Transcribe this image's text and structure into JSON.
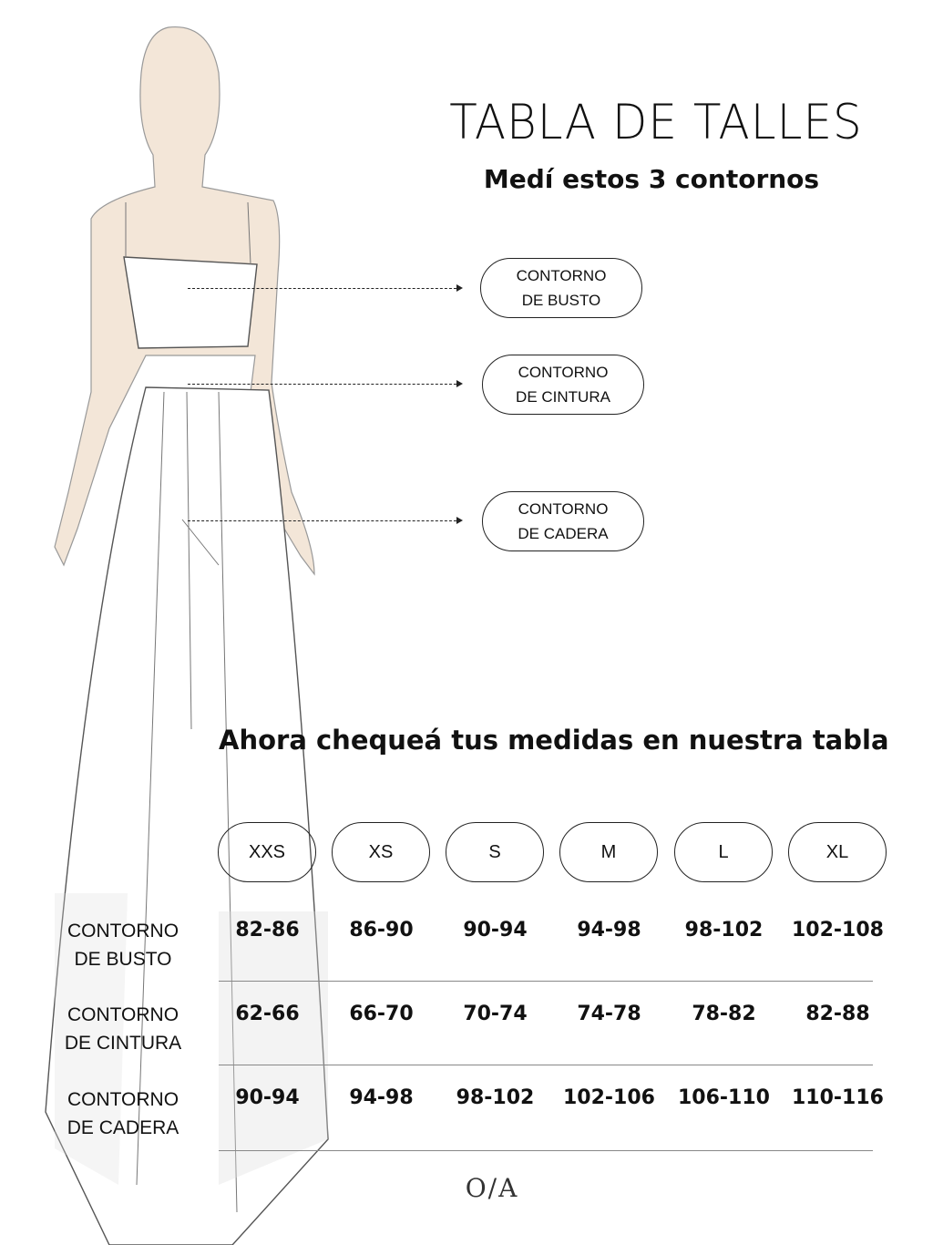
{
  "title": "TABLA DE TALLES",
  "subtitle": "Medí estos 3 contornos",
  "measure_labels": [
    {
      "line1": "CONTORNO",
      "line2": "DE BUSTO"
    },
    {
      "line1": "CONTORNO",
      "line2": "DE CINTURA"
    },
    {
      "line1": "CONTORNO",
      "line2": "DE CADERA"
    }
  ],
  "table_heading": "Ahora chequeá tus medidas en nuestra tabla",
  "table": {
    "sizes": [
      "XXS",
      "XS",
      "S",
      "M",
      "L",
      "XL"
    ],
    "rows": [
      {
        "line1": "CONTORNO",
        "line2": "DE BUSTO",
        "values": [
          "82-86",
          "86-90",
          "90-94",
          "94-98",
          "98-102",
          "102-108"
        ]
      },
      {
        "line1": "CONTORNO",
        "line2": "DE CINTURA",
        "values": [
          "62-66",
          "66-70",
          "70-74",
          "74-78",
          "78-82",
          "82-88"
        ]
      },
      {
        "line1": "CONTORNO",
        "line2": "DE CADERA",
        "values": [
          "90-94",
          "94-98",
          "98-102",
          "102-106",
          "106-110",
          "110-116"
        ]
      }
    ]
  },
  "logo": "O/A",
  "colors": {
    "skin": "#f3e6d8",
    "ink": "#222222"
  }
}
